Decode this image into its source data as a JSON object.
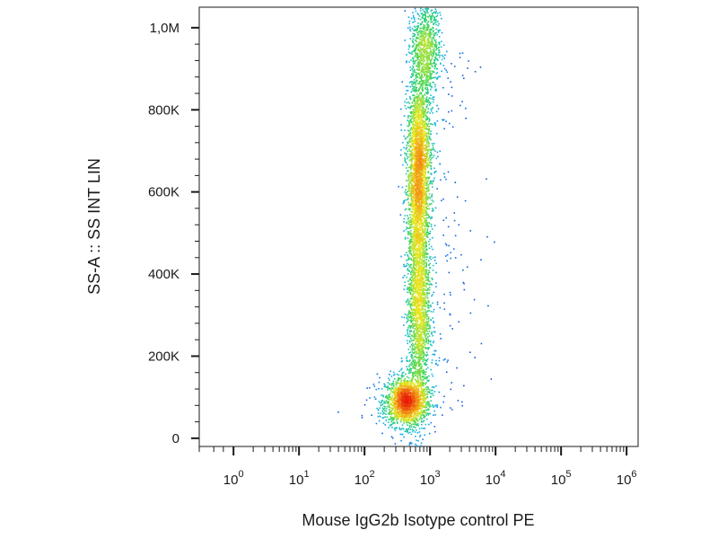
{
  "chart_data": {
    "type": "scatter",
    "subtype": "flow cytometry density plot",
    "title": "",
    "xlabel": "Mouse IgG2b Isotype control PE",
    "ylabel": "SS-A :: SS INT LIN",
    "xscale": "log",
    "yscale": "linear",
    "xlim": [
      0.3,
      1500000
    ],
    "ylim": [
      -20000,
      1050000
    ],
    "x_ticks": [
      {
        "value": 1,
        "base": "10",
        "exp": "0"
      },
      {
        "value": 10,
        "base": "10",
        "exp": "1"
      },
      {
        "value": 100,
        "base": "10",
        "exp": "2"
      },
      {
        "value": 1000,
        "base": "10",
        "exp": "3"
      },
      {
        "value": 10000,
        "base": "10",
        "exp": "4"
      },
      {
        "value": 100000,
        "base": "10",
        "exp": "5"
      },
      {
        "value": 1000000,
        "base": "10",
        "exp": "6"
      }
    ],
    "y_ticks": [
      {
        "value": 0,
        "label": "0"
      },
      {
        "value": 200000,
        "label": "200K"
      },
      {
        "value": 400000,
        "label": "400K"
      },
      {
        "value": 600000,
        "label": "600K"
      },
      {
        "value": 800000,
        "label": "800K"
      },
      {
        "value": 1000000,
        "label": "1,0M"
      }
    ],
    "grid": false,
    "legend": "none",
    "colormap": [
      "#1a2fd6",
      "#15b6f0",
      "#2fd35f",
      "#e8e81e",
      "#f28a10",
      "#e81a0a"
    ],
    "populations": [
      {
        "x_center": 420,
        "y_center": 90000,
        "x_spread_decades": 0.16,
        "y_spread": 30000,
        "points": 1600
      },
      {
        "x_center": 650,
        "y_center": 320000,
        "x_spread_decades": 0.09,
        "y_spread": 140000,
        "points": 1900
      },
      {
        "x_center": 660,
        "y_center": 660000,
        "x_spread_decades": 0.09,
        "y_spread": 120000,
        "points": 2600
      },
      {
        "x_center": 850,
        "y_center": 960000,
        "x_spread_decades": 0.11,
        "y_spread": 60000,
        "points": 800
      }
    ]
  }
}
